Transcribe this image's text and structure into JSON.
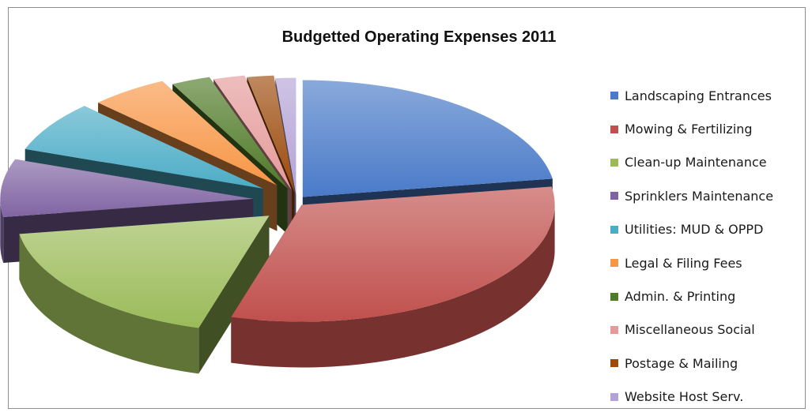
{
  "chart_data": {
    "type": "pie",
    "title": "Budgetted Operating Expenses 2011",
    "three_d": true,
    "exploded": true,
    "legend_position": "right",
    "categories": [
      "Landscaping Entrances",
      "Mowing & Fertilizing",
      "Clean-up Maintenance",
      "Sprinklers Maintenance",
      "Utilities: MUD & OPPD",
      "Legal & Filing Fees",
      "Admin. & Printing",
      "Miscellaneous Social",
      "Postage & Mailing",
      "Website Host Serv."
    ],
    "values": [
      22.5,
      32.0,
      18.0,
      8.0,
      7.0,
      5.0,
      2.5,
      2.0,
      1.7,
      1.3
    ],
    "colors": [
      "#4a7ac8",
      "#c0504d",
      "#9bbb59",
      "#8064a2",
      "#4bacc6",
      "#f79646",
      "#4f7a28",
      "#e59a9a",
      "#9c4a0a",
      "#b3a2d6"
    ]
  }
}
